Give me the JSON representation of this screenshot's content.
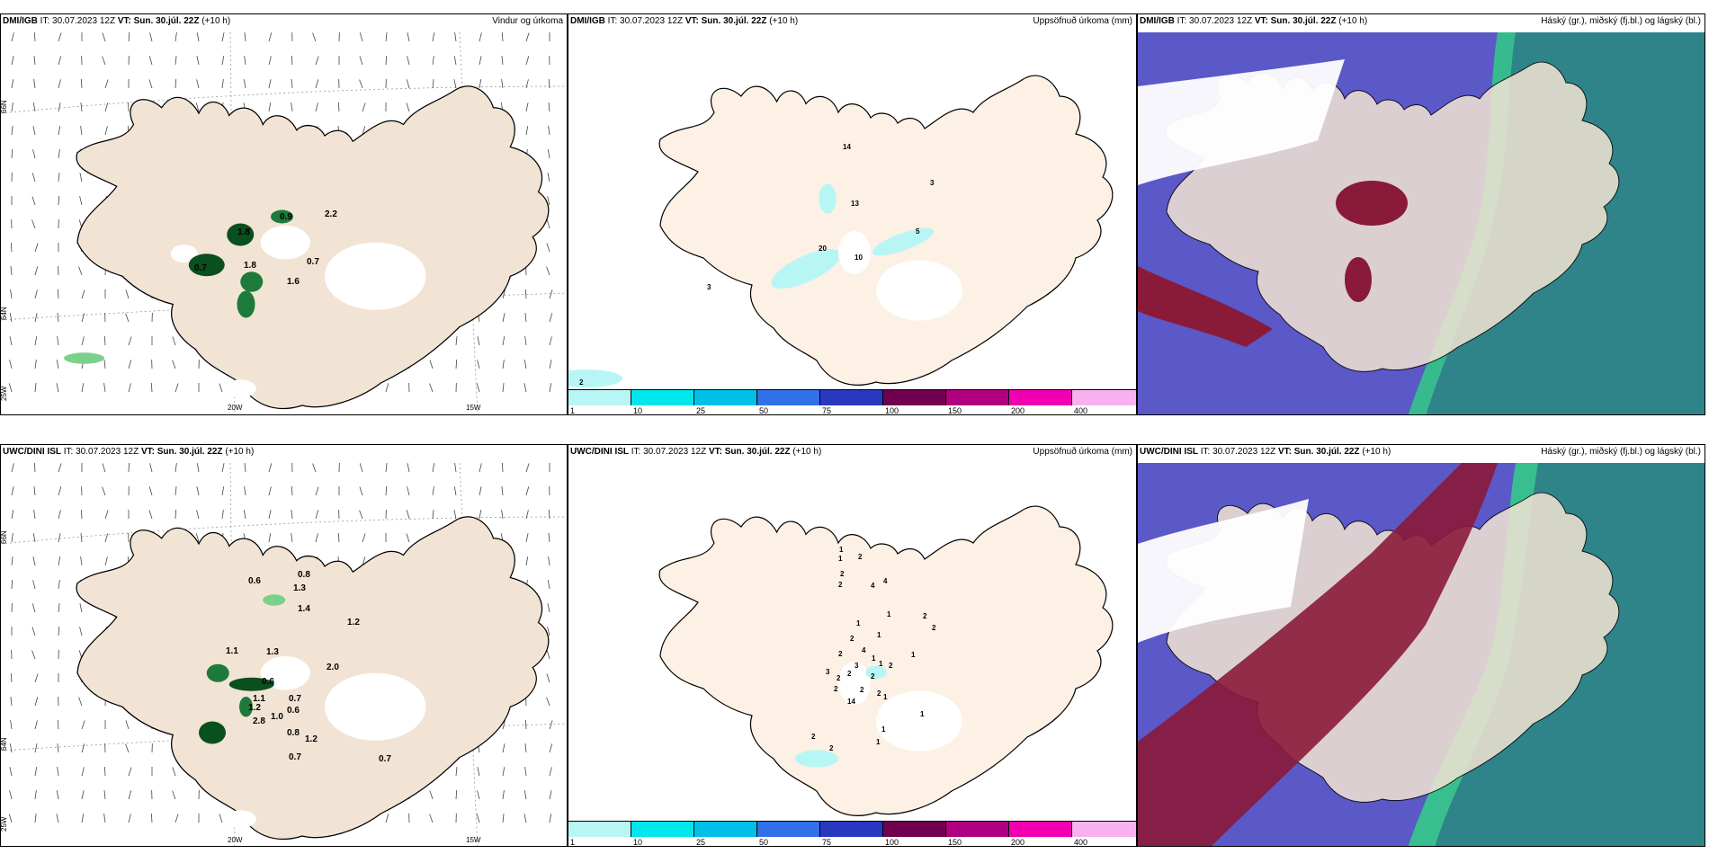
{
  "rows": [
    {
      "model": "DMI/IGB",
      "it": "IT: 30.07.2023 12Z",
      "vt": "VT: Sun. 30.júl. 22Z",
      "lead": "(+10 h)"
    },
    {
      "model": "UWC/DINI ISL",
      "it": "IT: 30.07.2023 12Z",
      "vt": "VT: Sun. 30.júl. 22Z",
      "lead": "(+10 h)"
    }
  ],
  "panel_titles": {
    "wind": "Vindur og úrkoma",
    "accum": "Uppsöfnuð úrkoma (mm)",
    "cloud": "Háský (gr.), miðský (fj.bl.) og lágský (bl.)"
  },
  "axis": {
    "lon_labels": [
      "20W",
      "15W"
    ],
    "lat_labels": [
      "66N",
      "64N",
      "25W"
    ]
  },
  "colorbar": {
    "ticks": [
      "1",
      "10",
      "25",
      "50",
      "75",
      "100",
      "150",
      "200",
      "400"
    ],
    "colors": [
      "#b8f6f6",
      "#00e8ee",
      "#00c0e8",
      "#3070e8",
      "#2838c0",
      "#700050",
      "#b00080",
      "#f000b0",
      "#f8b0f0"
    ]
  },
  "wind_labels_top": [
    "0.7",
    "1.8",
    "0.7",
    "1.6",
    "0.9",
    "2.2",
    "1.8"
  ],
  "wind_labels_bottom": [
    "0.6",
    "0.8",
    "1.3",
    "1.4",
    "1.2",
    "1.1",
    "1.3",
    "2.0",
    "0.6",
    "1.1",
    "1.2",
    "0.7",
    "1.0",
    "0.6",
    "2.8",
    "0.8",
    "1.2",
    "0.7",
    "0.7"
  ],
  "accum_labels_top": [
    "14",
    "3",
    "13",
    "5",
    "20",
    "10",
    "3",
    "2"
  ],
  "accum_labels_bottom": [
    "1",
    "2",
    "1",
    "2",
    "2",
    "4",
    "4",
    "1",
    "1",
    "2",
    "2",
    "1",
    "2",
    "2",
    "4",
    "1",
    "1",
    "2",
    "1",
    "2",
    "2",
    "2",
    "3",
    "3",
    "2",
    "14",
    "2",
    "2",
    "1",
    "1",
    "1",
    "1",
    "2",
    "2"
  ]
}
